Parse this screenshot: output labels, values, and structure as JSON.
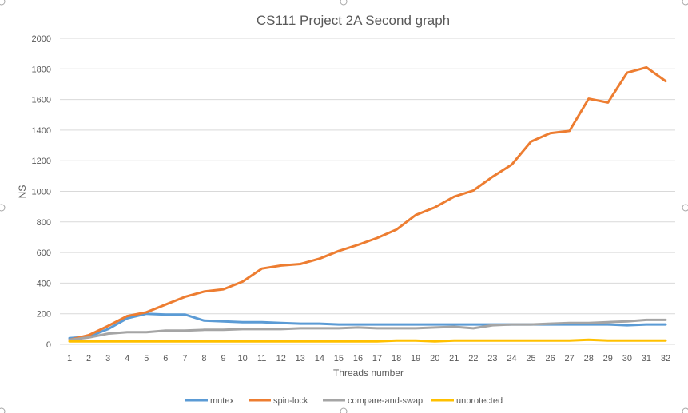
{
  "chart_data": {
    "type": "line",
    "title": "CS111 Project 2A Second graph",
    "xlabel": "Threads number",
    "ylabel": "NS",
    "ylim": [
      0,
      2000
    ],
    "yticks": [
      "0",
      "200",
      "400",
      "600",
      "800",
      "1000",
      "1200",
      "1400",
      "1600",
      "1800",
      "2000"
    ],
    "categories": [
      "1",
      "2",
      "3",
      "4",
      "5",
      "6",
      "7",
      "8",
      "9",
      "10",
      "11",
      "12",
      "13",
      "14",
      "15",
      "16",
      "17",
      "18",
      "19",
      "20",
      "21",
      "22",
      "23",
      "24",
      "25",
      "26",
      "27",
      "28",
      "29",
      "30",
      "31",
      "32"
    ],
    "grid": true,
    "legend_position": "bottom",
    "series": [
      {
        "name": "mutex",
        "color": "#5b9bd5",
        "values": [
          40,
          50,
          100,
          170,
          200,
          195,
          195,
          155,
          150,
          145,
          145,
          140,
          135,
          135,
          130,
          130,
          130,
          130,
          130,
          130,
          130,
          130,
          130,
          130,
          130,
          130,
          130,
          130,
          130,
          125,
          130,
          130
        ]
      },
      {
        "name": "spin-lock",
        "color": "#ed7d31",
        "values": [
          30,
          60,
          120,
          185,
          210,
          260,
          310,
          345,
          360,
          410,
          495,
          515,
          525,
          560,
          610,
          650,
          695,
          750,
          845,
          895,
          965,
          1005,
          1095,
          1175,
          1325,
          1380,
          1395,
          1605,
          1580,
          1775,
          1810,
          1720
        ]
      },
      {
        "name": "compare-and-swap",
        "color": "#a5a5a5",
        "values": [
          30,
          45,
          70,
          80,
          80,
          90,
          90,
          95,
          95,
          100,
          100,
          100,
          105,
          105,
          105,
          110,
          105,
          105,
          105,
          110,
          115,
          105,
          125,
          130,
          130,
          135,
          140,
          140,
          145,
          150,
          160,
          160
        ]
      },
      {
        "name": "unprotected",
        "color": "#ffc000",
        "values": [
          20,
          20,
          20,
          20,
          20,
          20,
          20,
          20,
          20,
          20,
          20,
          20,
          20,
          20,
          20,
          20,
          20,
          25,
          25,
          20,
          25,
          25,
          25,
          25,
          25,
          25,
          25,
          30,
          25,
          25,
          25,
          25
        ]
      }
    ]
  }
}
